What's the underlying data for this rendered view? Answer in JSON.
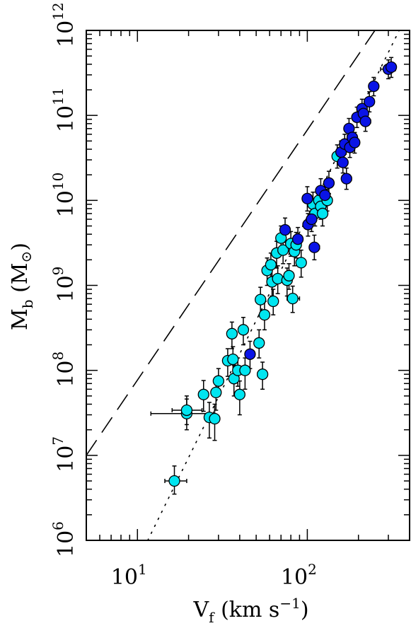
{
  "chart_data": {
    "type": "scatter",
    "title": "",
    "xlabel": "V",
    "xlabel_sub": "f",
    "xlabel_units_pre": " (km s",
    "xlabel_units_exp": "−1",
    "xlabel_units_post": ")",
    "ylabel": "M",
    "ylabel_sub": "b",
    "ylabel_units_pre": " (M",
    "ylabel_units_sym": "⊙",
    "ylabel_units_post": ")",
    "x_scale": "log",
    "y_scale": "log",
    "xlim": [
      5,
      400
    ],
    "ylim": [
      1000000,
      1000000000000
    ],
    "x_ticks": [
      {
        "value": 10,
        "base": "10",
        "exp": "1"
      },
      {
        "value": 100,
        "base": "10",
        "exp": "2"
      }
    ],
    "y_ticks": [
      {
        "value": 1000000,
        "base": "10",
        "exp": "6"
      },
      {
        "value": 10000000,
        "base": "10",
        "exp": "7"
      },
      {
        "value": 100000000,
        "base": "10",
        "exp": "8"
      },
      {
        "value": 1000000000,
        "base": "10",
        "exp": "9"
      },
      {
        "value": 10000000000,
        "base": "10",
        "exp": "10"
      },
      {
        "value": 100000000000,
        "base": "10",
        "exp": "11"
      },
      {
        "value": 1000000000000,
        "base": "10",
        "exp": "12"
      }
    ],
    "grid": false,
    "lines": [
      {
        "style": "dashed",
        "x": [
          5,
          250
        ],
        "y": [
          10000000,
          1000000000000
        ]
      },
      {
        "style": "dotted",
        "x": [
          11.5,
          400
        ],
        "y": [
          1000000,
          1770000000000
        ]
      }
    ],
    "colors": {
      "cyan": "#00e5f0",
      "blue": "#0a14e6",
      "edge": "#000000"
    },
    "series": [
      {
        "color": "cyan",
        "points": [
          {
            "x": 16.5,
            "y": 5000000.0,
            "xlo": 14.5,
            "xhi": 19.5,
            "ylo": 3500000.0,
            "yhi": 7500000.0
          },
          {
            "x": 19.5,
            "y": 31000000.0,
            "xlo": 12.0,
            "xhi": 28.0,
            "ylo": 20000000.0,
            "yhi": 46000000.0
          },
          {
            "x": 19.5,
            "y": 34000000.0,
            "xlo": 16.0,
            "xhi": 24.0,
            "ylo": 23000000.0,
            "yhi": 50000000.0
          },
          {
            "x": 24.5,
            "y": 52000000.0,
            "ylo": 33000000.0,
            "yhi": 76000000.0
          },
          {
            "x": 26.5,
            "y": 28000000.0,
            "ylo": 16000000.0,
            "yhi": 42000000.0
          },
          {
            "x": 28.5,
            "y": 27000000.0,
            "ylo": 15000000.0,
            "yhi": 40000000.0
          },
          {
            "x": 29.0,
            "y": 55000000.0,
            "ylo": 34000000.0,
            "yhi": 80000000.0
          },
          {
            "x": 30.0,
            "y": 75000000.0,
            "ylo": 50000000.0,
            "yhi": 105000000.0
          },
          {
            "x": 34.0,
            "y": 130000000.0,
            "ylo": 85000000.0,
            "yhi": 180000000.0
          },
          {
            "x": 36.0,
            "y": 270000000.0,
            "ylo": 180000000.0,
            "yhi": 370000000.0
          },
          {
            "x": 36.5,
            "y": 135000000.0,
            "ylo": 90000000.0,
            "yhi": 190000000.0
          },
          {
            "x": 37.0,
            "y": 80000000.0,
            "ylo": 50000000.0,
            "yhi": 115000000.0
          },
          {
            "x": 39.0,
            "y": 100000000.0,
            "ylo": 65000000.0,
            "yhi": 140000000.0
          },
          {
            "x": 40.0,
            "y": 52000000.0,
            "ylo": 30000000.0,
            "yhi": 75000000.0
          },
          {
            "x": 42.0,
            "y": 300000000.0,
            "ylo": 200000000.0,
            "yhi": 420000000.0
          },
          {
            "x": 43.0,
            "y": 100000000.0,
            "ylo": 60000000.0,
            "yhi": 140000000.0
          },
          {
            "x": 52.0,
            "y": 210000000.0,
            "ylo": 140000000.0,
            "yhi": 300000000.0
          },
          {
            "x": 53.0,
            "y": 680000000.0,
            "ylo": 450000000.0,
            "yhi": 950000000.0
          },
          {
            "x": 54.5,
            "y": 90000000.0,
            "xlo": 51.0,
            "xhi": 58.0,
            "ylo": 60000000.0,
            "yhi": 125000000.0
          },
          {
            "x": 56.0,
            "y": 450000000.0,
            "ylo": 300000000.0,
            "yhi": 650000000.0
          },
          {
            "x": 58.0,
            "y": 1500000000.0,
            "ylo": 1000000000.0,
            "yhi": 2100000000.0
          },
          {
            "x": 61.0,
            "y": 1750000000.0,
            "ylo": 1200000000.0,
            "yhi": 2400000000.0
          },
          {
            "x": 62.0,
            "y": 1100000000.0,
            "ylo": 750000000.0,
            "yhi": 1550000000.0
          },
          {
            "x": 63.0,
            "y": 650000000.0,
            "ylo": 450000000.0,
            "yhi": 900000000.0
          },
          {
            "x": 66.0,
            "y": 2400000000.0,
            "ylo": 1600000000.0,
            "yhi": 3300000000.0
          },
          {
            "x": 67.0,
            "y": 1200000000.0,
            "ylo": 800000000.0,
            "yhi": 1700000000.0
          },
          {
            "x": 70.0,
            "y": 3600000000.0,
            "ylo": 2500000000.0,
            "yhi": 5000000000.0
          },
          {
            "x": 72.0,
            "y": 2600000000.0,
            "ylo": 1800000000.0,
            "yhi": 3600000000.0
          },
          {
            "x": 76.0,
            "y": 1150000000.0,
            "ylo": 750000000.0,
            "yhi": 1600000000.0
          },
          {
            "x": 78.0,
            "y": 1300000000.0,
            "ylo": 900000000.0,
            "yhi": 1800000000.0
          },
          {
            "x": 80.0,
            "y": 3100000000.0,
            "ylo": 2200000000.0,
            "yhi": 4300000000.0
          },
          {
            "x": 82.0,
            "y": 700000000.0,
            "xlo": 76.0,
            "xhi": 90.0,
            "ylo": 480000000.0,
            "yhi": 980000000.0
          },
          {
            "x": 84.0,
            "y": 2500000000.0,
            "ylo": 1700000000.0,
            "yhi": 3500000000.0
          },
          {
            "x": 86.0,
            "y": 3000000000.0,
            "ylo": 2100000000.0,
            "yhi": 4200000000.0
          },
          {
            "x": 92.0,
            "y": 1850000000.0,
            "ylo": 1250000000.0,
            "yhi": 2600000000.0
          },
          {
            "x": 108.0,
            "y": 9000000000.0,
            "ylo": 6500000000.0,
            "yhi": 12500000000.0
          },
          {
            "x": 111.0,
            "y": 7000000000.0,
            "ylo": 5000000000.0,
            "yhi": 9500000000.0
          },
          {
            "x": 117.0,
            "y": 10000000000.0,
            "ylo": 7500000000.0,
            "yhi": 13500000000.0
          },
          {
            "x": 120.0,
            "y": 8500000000.0,
            "ylo": 6000000000.0,
            "yhi": 11500000000.0
          },
          {
            "x": 123.0,
            "y": 7000000000.0,
            "ylo": 5000000000.0,
            "yhi": 9500000000.0
          },
          {
            "x": 131.0,
            "y": 10000000000.0,
            "ylo": 7500000000.0,
            "yhi": 13500000000.0
          },
          {
            "x": 150.0,
            "y": 33000000000.0,
            "ylo": 24000000000.0,
            "yhi": 45000000000.0
          }
        ]
      },
      {
        "color": "blue",
        "points": [
          {
            "x": 46.0,
            "y": 155000000.0,
            "ylo": 105000000.0,
            "yhi": 220000000.0
          },
          {
            "x": 74.0,
            "y": 4500000000.0,
            "ylo": 3200000000.0,
            "yhi": 6200000000.0
          },
          {
            "x": 88.0,
            "y": 3500000000.0,
            "ylo": 2500000000.0,
            "yhi": 4800000000.0
          },
          {
            "x": 100.0,
            "y": 10500000000.0,
            "ylo": 7500000000.0,
            "yhi": 14500000000.0
          },
          {
            "x": 101.0,
            "y": 5200000000.0,
            "ylo": 3800000000.0,
            "yhi": 7000000000.0
          },
          {
            "x": 106.0,
            "y": 6000000000.0,
            "ylo": 4300000000.0,
            "yhi": 8200000000.0
          },
          {
            "x": 110.0,
            "y": 2800000000.0,
            "xlo": 103.0,
            "xhi": 118.0,
            "ylo": 2000000000.0,
            "yhi": 3900000000.0
          },
          {
            "x": 120.0,
            "y": 13000000000.0,
            "ylo": 9500000000.0,
            "yhi": 18000000000.0
          },
          {
            "x": 127.0,
            "y": 11500000000.0,
            "ylo": 8500000000.0,
            "yhi": 15500000000.0
          },
          {
            "x": 134.0,
            "y": 16000000000.0,
            "ylo": 12000000000.0,
            "yhi": 22000000000.0
          },
          {
            "x": 158.0,
            "y": 37000000000.0,
            "ylo": 28000000000.0,
            "yhi": 50000000000.0
          },
          {
            "x": 162.0,
            "y": 28000000000.0,
            "ylo": 21000000000.0,
            "yhi": 38000000000.0
          },
          {
            "x": 166.0,
            "y": 46000000000.0,
            "ylo": 35000000000.0,
            "yhi": 60000000000.0
          },
          {
            "x": 170.0,
            "y": 18000000000.0,
            "xlo": 160.0,
            "xhi": 182.0,
            "ylo": 13500000000.0,
            "yhi": 24000000000.0
          },
          {
            "x": 176.0,
            "y": 70000000000.0,
            "ylo": 53000000000.0,
            "yhi": 92000000000.0
          },
          {
            "x": 178.0,
            "y": 42000000000.0,
            "ylo": 32000000000.0,
            "yhi": 55000000000.0
          },
          {
            "x": 184.0,
            "y": 55000000000.0,
            "ylo": 42000000000.0,
            "yhi": 72000000000.0
          },
          {
            "x": 190.0,
            "y": 48000000000.0,
            "ylo": 36000000000.0,
            "yhi": 63000000000.0
          },
          {
            "x": 196.0,
            "y": 95000000000.0,
            "ylo": 72000000000.0,
            "yhi": 125000000000.0
          },
          {
            "x": 210.0,
            "y": 120000000000.0,
            "ylo": 92000000000.0,
            "yhi": 155000000000.0
          },
          {
            "x": 214.0,
            "y": 105000000000.0,
            "ylo": 80000000000.0,
            "yhi": 135000000000.0
          },
          {
            "x": 220.0,
            "y": 85000000000.0,
            "xlo": 205.0,
            "xhi": 236.0,
            "ylo": 65000000000.0,
            "yhi": 110000000000.0
          },
          {
            "x": 232.0,
            "y": 145000000000.0,
            "ylo": 110000000000.0,
            "yhi": 190000000000.0
          },
          {
            "x": 246.0,
            "y": 220000000000.0,
            "ylo": 170000000000.0,
            "yhi": 280000000000.0
          },
          {
            "x": 300.0,
            "y": 350000000000.0,
            "xlo": 270.0,
            "xhi": 330.0,
            "ylo": 270000000000.0,
            "yhi": 450000000000.0
          },
          {
            "x": 312.0,
            "y": 370000000000.0,
            "ylo": 280000000000.0,
            "yhi": 480000000000.0
          }
        ]
      }
    ]
  }
}
